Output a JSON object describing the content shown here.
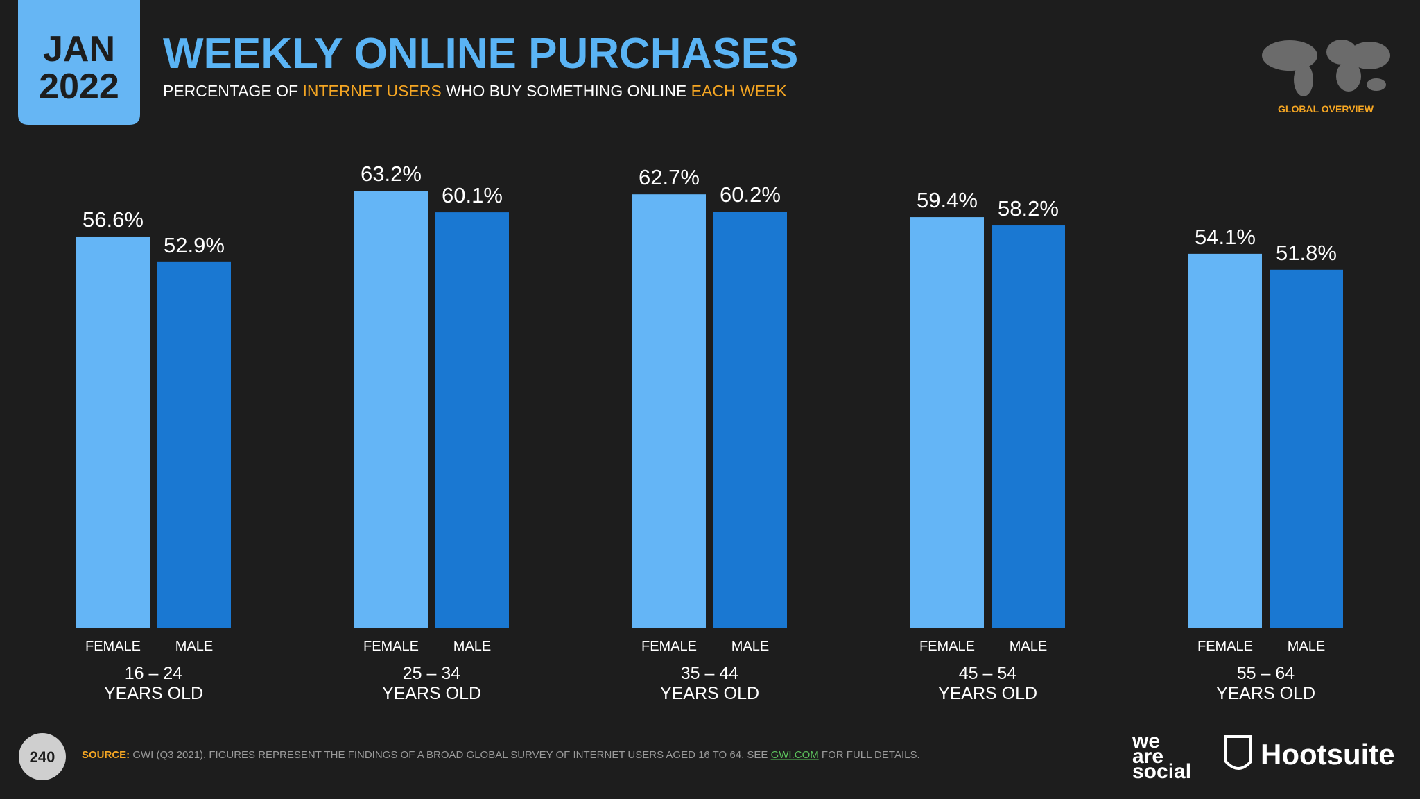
{
  "header": {
    "date_month": "JAN",
    "date_year": "2022",
    "badge": "GLOBAL OVERVIEW"
  },
  "chart_data": {
    "type": "bar",
    "title": "WEEKLY ONLINE PURCHASES",
    "subtitle": [
      {
        "text": "PERCENTAGE OF ",
        "color": "#ffffff"
      },
      {
        "text": "INTERNET USERS",
        "color": "#f5a623"
      },
      {
        "text": " WHO BUY SOMETHING ONLINE ",
        "color": "#ffffff"
      },
      {
        "text": "EACH WEEK",
        "color": "#f5a623"
      }
    ],
    "categories": [
      "16 – 24",
      "25 – 34",
      "35 – 44",
      "45 – 54",
      "55 – 64"
    ],
    "category_suffix": "YEARS OLD",
    "series": [
      {
        "name": "FEMALE",
        "color": "#64b5f6",
        "values": [
          56.6,
          63.2,
          62.7,
          59.4,
          54.1
        ],
        "value_labels": [
          "56.6%",
          "63.2%",
          "62.7%",
          "59.4%",
          "54.1%"
        ]
      },
      {
        "name": "MALE",
        "color": "#1a78d2",
        "values": [
          52.9,
          60.1,
          60.2,
          58.2,
          51.8
        ],
        "value_labels": [
          "52.9%",
          "60.1%",
          "60.2%",
          "58.2%",
          "51.8%"
        ]
      }
    ]
  },
  "footer": {
    "page": "240",
    "source": [
      {
        "text": "SOURCE:",
        "color": "#f5a623",
        "bold": true,
        "underline": false
      },
      {
        "text": " GWI (Q3 2021). FIGURES REPRESENT THE FINDINGS OF A BROAD GLOBAL SURVEY OF INTERNET USERS AGED 16 TO 64. SEE ",
        "color": "#9a9a9a",
        "bold": false,
        "underline": false
      },
      {
        "text": "GWI.COM",
        "color": "#5cc25c",
        "bold": false,
        "underline": true
      },
      {
        "text": " FOR FULL DETAILS.",
        "color": "#9a9a9a",
        "bold": false,
        "underline": false
      }
    ],
    "logo_left": [
      "we",
      "are",
      "social"
    ],
    "logo_right": "Hootsuite"
  }
}
